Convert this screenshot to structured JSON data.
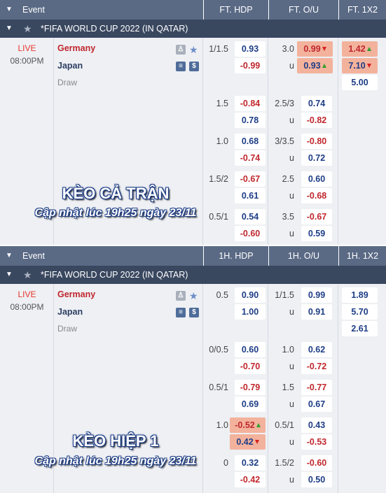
{
  "panels": [
    {
      "header": {
        "event": "Event",
        "col1": "FT. HDP",
        "col2": "FT. O/U",
        "col3": "FT. 1X2"
      },
      "league": "*FIFA WORLD CUP 2022 (IN QATAR)",
      "match": {
        "status": "LIVE",
        "time": "08:00PM",
        "home": "Germany",
        "away": "Japan",
        "draw": "Draw"
      },
      "rows": [
        {
          "hdp_line": "1/1.5",
          "hdp_odds": "0.93",
          "ou_line": "3.0",
          "ou_odds": "0.99",
          "x12": "1.42"
        },
        {
          "hdp_line": "",
          "hdp_odds": "-0.99",
          "ou_line": "u",
          "ou_odds": "0.93",
          "x12": "7.10"
        },
        {
          "hdp_line": "",
          "hdp_odds": "",
          "ou_line": "",
          "ou_odds": "",
          "x12": "5.00"
        },
        {
          "hdp_line": "1.5",
          "hdp_odds": "-0.84",
          "ou_line": "2.5/3",
          "ou_odds": "0.74"
        },
        {
          "hdp_line": "",
          "hdp_odds": "0.78",
          "ou_line": "u",
          "ou_odds": "-0.82"
        },
        {
          "hdp_line": "1.0",
          "hdp_odds": "0.68",
          "ou_line": "3/3.5",
          "ou_odds": "-0.80"
        },
        {
          "hdp_line": "",
          "hdp_odds": "-0.74",
          "ou_line": "u",
          "ou_odds": "0.72"
        },
        {
          "hdp_line": "1.5/2",
          "hdp_odds": "-0.67",
          "ou_line": "2.5",
          "ou_odds": "0.60"
        },
        {
          "hdp_line": "",
          "hdp_odds": "0.61",
          "ou_line": "u",
          "ou_odds": "-0.68"
        },
        {
          "hdp_line": "0.5/1",
          "hdp_odds": "0.54",
          "ou_line": "3.5",
          "ou_odds": "-0.67"
        },
        {
          "hdp_line": "",
          "hdp_odds": "-0.60",
          "ou_line": "u",
          "ou_odds": "0.59"
        }
      ],
      "overlay": {
        "title": "KÈO CẢ TRẬN",
        "subtitle": "Cập nhật lúc 19h25 ngày 23/11"
      }
    },
    {
      "header": {
        "event": "Event",
        "col1": "1H. HDP",
        "col2": "1H. O/U",
        "col3": "1H. 1X2"
      },
      "league": "*FIFA WORLD CUP 2022 (IN QATAR)",
      "match": {
        "status": "LIVE",
        "time": "08:00PM",
        "home": "Germany",
        "away": "Japan",
        "draw": "Draw"
      },
      "rows": [
        {
          "hdp_line": "0.5",
          "hdp_odds": "0.90",
          "ou_line": "1/1.5",
          "ou_odds": "0.99",
          "x12": "1.89"
        },
        {
          "hdp_line": "",
          "hdp_odds": "1.00",
          "ou_line": "u",
          "ou_odds": "0.91",
          "x12": "5.70"
        },
        {
          "hdp_line": "",
          "hdp_odds": "",
          "ou_line": "",
          "ou_odds": "",
          "x12": "2.61"
        },
        {
          "hdp_line": "0/0.5",
          "hdp_odds": "0.60",
          "ou_line": "1.0",
          "ou_odds": "0.62"
        },
        {
          "hdp_line": "",
          "hdp_odds": "-0.70",
          "ou_line": "u",
          "ou_odds": "-0.72"
        },
        {
          "hdp_line": "0.5/1",
          "hdp_odds": "-0.79",
          "ou_line": "1.5",
          "ou_odds": "-0.77"
        },
        {
          "hdp_line": "",
          "hdp_odds": "0.69",
          "ou_line": "u",
          "ou_odds": "0.67"
        },
        {
          "hdp_line": "1.0",
          "hdp_odds": "-0.52",
          "ou_line": "0.5/1",
          "ou_odds": "0.43"
        },
        {
          "hdp_line": "",
          "hdp_odds": "0.42",
          "ou_line": "u",
          "ou_odds": "-0.53"
        },
        {
          "hdp_line": "0",
          "hdp_odds": "0.32",
          "ou_line": "1.5/2",
          "ou_odds": "-0.60"
        },
        {
          "hdp_line": "",
          "hdp_odds": "-0.42",
          "ou_line": "u",
          "ou_odds": "0.50"
        }
      ],
      "overlay": {
        "title": "KÈO HIỆP 1",
        "subtitle": "Cập nhật lúc 19h25 ngày 23/11"
      }
    }
  ],
  "colors": {
    "header": "#5a6a85",
    "league": "#39475f",
    "body": "#eef0f4",
    "positive": "#1d3d86",
    "negative": "#c0272d",
    "highlight": "#f3b29c",
    "up": "#2fa02f",
    "down": "#d62020"
  },
  "icons": {
    "expand": "chevron-down-icon",
    "favorite": "star-icon",
    "stats": "shirt-icon",
    "score": "scoreboard-icon",
    "money": "dollar-icon"
  }
}
